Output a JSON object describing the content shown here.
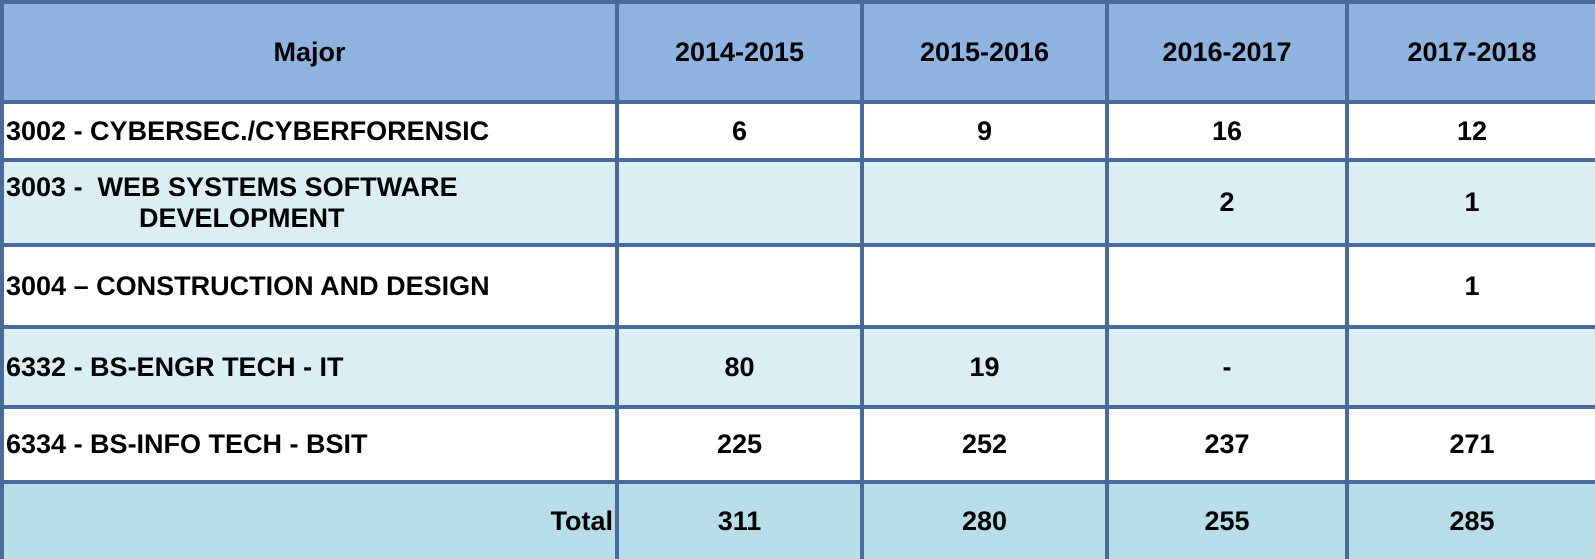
{
  "table": {
    "headers": [
      "Major",
      "2014-2015",
      "2015-2016",
      "2016-2017",
      "2017-2018"
    ],
    "rows": [
      {
        "label": "3002 - CYBERSEC./CYBERFORENSIC",
        "cells": [
          6,
          9,
          16,
          12
        ]
      },
      {
        "label": "3003 -  WEB SYSTEMS SOFTWARE DEVELOPMENT",
        "cells": [
          null,
          null,
          2,
          1
        ]
      },
      {
        "label": "3004 – CONSTRUCTION AND DESIGN",
        "cells": [
          null,
          null,
          null,
          1
        ]
      },
      {
        "label": "6332 - BS-ENGR TECH - IT",
        "cells": [
          80,
          19,
          "-",
          null
        ]
      },
      {
        "label": "6334 - BS-INFO TECH - BSIT",
        "cells": [
          225,
          252,
          237,
          271
        ]
      }
    ],
    "total": {
      "label": "Total",
      "cells": [
        311,
        280,
        255,
        285
      ]
    }
  }
}
